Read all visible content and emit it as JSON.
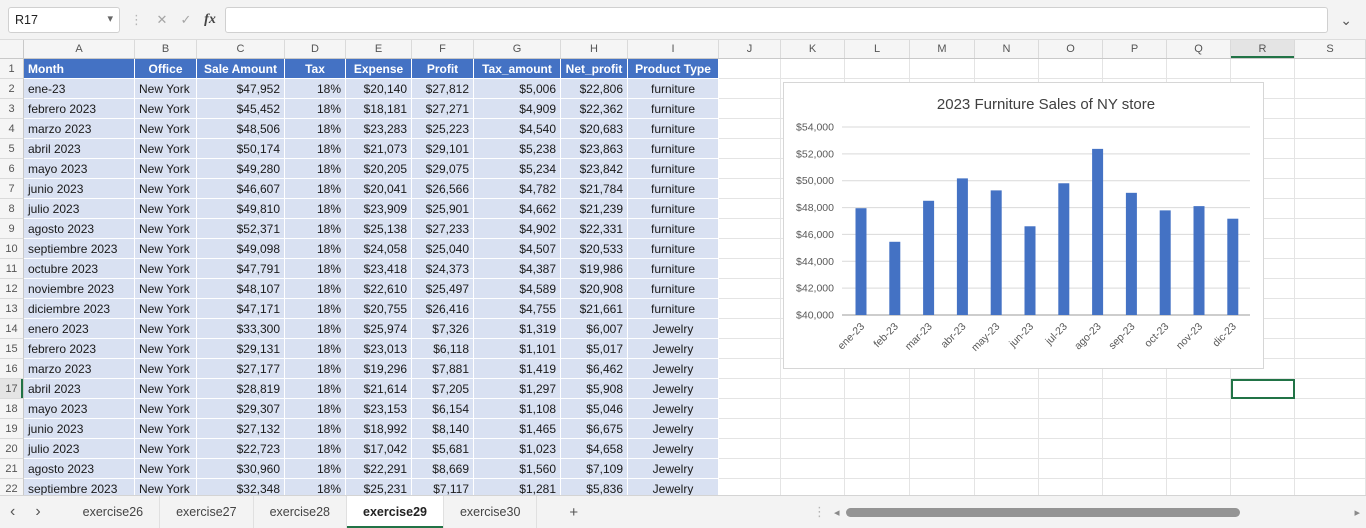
{
  "formula_bar": {
    "name_box_value": "R17",
    "cancel_icon": "✕",
    "enter_icon": "✓",
    "fx_icon": "fx",
    "formula_value": ""
  },
  "grid": {
    "column_letters": [
      "A",
      "B",
      "C",
      "D",
      "E",
      "F",
      "G",
      "H",
      "I",
      "J",
      "K",
      "L",
      "M",
      "N",
      "O",
      "P",
      "Q",
      "R",
      "S"
    ],
    "row_count": 22,
    "selected_cell": "R17",
    "selected_column": "R",
    "selected_row": 17
  },
  "table": {
    "header_fill": "#4472C4",
    "band_fill": "#D9E1F2",
    "headers": [
      "Month",
      "Office",
      "Sale Amount",
      "Tax",
      "Expense",
      "Profit",
      "Tax_amount",
      "Net_profit",
      "Product Type"
    ],
    "rows": [
      [
        "ene-23",
        "New York",
        "$47,952",
        "18%",
        "$20,140",
        "$27,812",
        "$5,006",
        "$22,806",
        "furniture"
      ],
      [
        "febrero 2023",
        "New York",
        "$45,452",
        "18%",
        "$18,181",
        "$27,271",
        "$4,909",
        "$22,362",
        "furniture"
      ],
      [
        "marzo 2023",
        "New York",
        "$48,506",
        "18%",
        "$23,283",
        "$25,223",
        "$4,540",
        "$20,683",
        "furniture"
      ],
      [
        "abril 2023",
        "New York",
        "$50,174",
        "18%",
        "$21,073",
        "$29,101",
        "$5,238",
        "$23,863",
        "furniture"
      ],
      [
        "mayo 2023",
        "New York",
        "$49,280",
        "18%",
        "$20,205",
        "$29,075",
        "$5,234",
        "$23,842",
        "furniture"
      ],
      [
        "junio 2023",
        "New York",
        "$46,607",
        "18%",
        "$20,041",
        "$26,566",
        "$4,782",
        "$21,784",
        "furniture"
      ],
      [
        "julio 2023",
        "New York",
        "$49,810",
        "18%",
        "$23,909",
        "$25,901",
        "$4,662",
        "$21,239",
        "furniture"
      ],
      [
        "agosto 2023",
        "New York",
        "$52,371",
        "18%",
        "$25,138",
        "$27,233",
        "$4,902",
        "$22,331",
        "furniture"
      ],
      [
        "septiembre 2023",
        "New York",
        "$49,098",
        "18%",
        "$24,058",
        "$25,040",
        "$4,507",
        "$20,533",
        "furniture"
      ],
      [
        "octubre 2023",
        "New York",
        "$47,791",
        "18%",
        "$23,418",
        "$24,373",
        "$4,387",
        "$19,986",
        "furniture"
      ],
      [
        "noviembre 2023",
        "New York",
        "$48,107",
        "18%",
        "$22,610",
        "$25,497",
        "$4,589",
        "$20,908",
        "furniture"
      ],
      [
        "diciembre 2023",
        "New York",
        "$47,171",
        "18%",
        "$20,755",
        "$26,416",
        "$4,755",
        "$21,661",
        "furniture"
      ],
      [
        "enero 2023",
        "New York",
        "$33,300",
        "18%",
        "$25,974",
        "$7,326",
        "$1,319",
        "$6,007",
        "Jewelry"
      ],
      [
        "febrero 2023",
        "New York",
        "$29,131",
        "18%",
        "$23,013",
        "$6,118",
        "$1,101",
        "$5,017",
        "Jewelry"
      ],
      [
        "marzo 2023",
        "New York",
        "$27,177",
        "18%",
        "$19,296",
        "$7,881",
        "$1,419",
        "$6,462",
        "Jewelry"
      ],
      [
        "abril 2023",
        "New York",
        "$28,819",
        "18%",
        "$21,614",
        "$7,205",
        "$1,297",
        "$5,908",
        "Jewelry"
      ],
      [
        "mayo 2023",
        "New York",
        "$29,307",
        "18%",
        "$23,153",
        "$6,154",
        "$1,108",
        "$5,046",
        "Jewelry"
      ],
      [
        "junio 2023",
        "New York",
        "$27,132",
        "18%",
        "$18,992",
        "$8,140",
        "$1,465",
        "$6,675",
        "Jewelry"
      ],
      [
        "julio 2023",
        "New York",
        "$22,723",
        "18%",
        "$17,042",
        "$5,681",
        "$1,023",
        "$4,658",
        "Jewelry"
      ],
      [
        "agosto 2023",
        "New York",
        "$30,960",
        "18%",
        "$22,291",
        "$8,669",
        "$1,560",
        "$7,109",
        "Jewelry"
      ],
      [
        "septiembre 2023",
        "New York",
        "$32,348",
        "18%",
        "$25,231",
        "$7,117",
        "$1,281",
        "$5,836",
        "Jewelry"
      ]
    ]
  },
  "chart_data": {
    "type": "bar",
    "title": "2023 Furniture Sales of NY store",
    "categories": [
      "ene-23",
      "feb-23",
      "mar-23",
      "abr-23",
      "may-23",
      "jun-23",
      "jul-23",
      "ago-23",
      "sep-23",
      "oct-23",
      "nov-23",
      "dic-23"
    ],
    "values": [
      47952,
      45452,
      48506,
      50174,
      49280,
      46607,
      49810,
      52371,
      49098,
      47791,
      48107,
      47171
    ],
    "series_name": "Sale Amount",
    "ylim": [
      40000,
      54000
    ],
    "ytick_step": 2000,
    "ytick_labels": [
      "$40,000",
      "$42,000",
      "$44,000",
      "$46,000",
      "$48,000",
      "$50,000",
      "$52,000",
      "$54,000"
    ],
    "bar_color": "#4472C4",
    "grid": true,
    "legend": "none",
    "xlabel": "",
    "ylabel": ""
  },
  "sheet_bar": {
    "nav_left": "‹",
    "nav_right": "›",
    "tabs": [
      {
        "label": "exercise26",
        "active": false
      },
      {
        "label": "exercise27",
        "active": false
      },
      {
        "label": "exercise28",
        "active": false
      },
      {
        "label": "exercise29",
        "active": true
      },
      {
        "label": "exercise30",
        "active": false
      }
    ],
    "add_tab": "+"
  },
  "colors": {
    "accent_green": "#217346",
    "table_header": "#4472C4",
    "table_band": "#D9E1F2",
    "bar": "#4472C4"
  }
}
